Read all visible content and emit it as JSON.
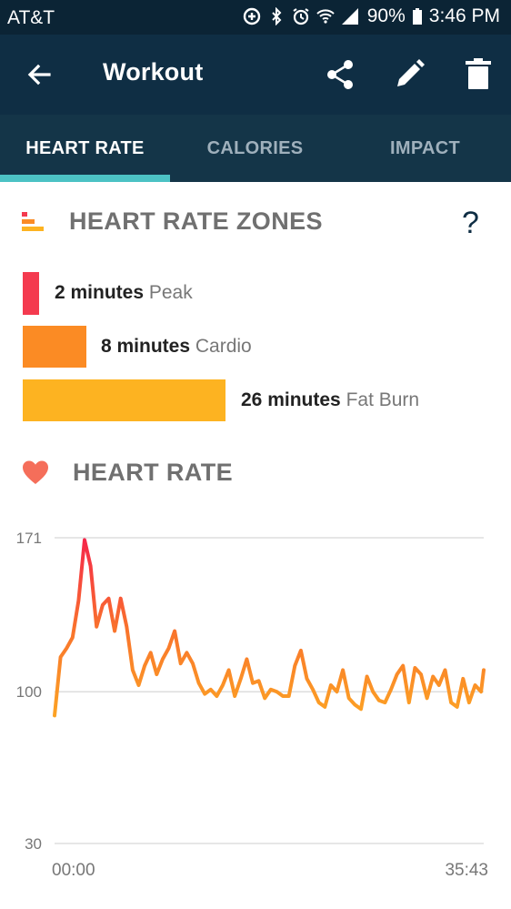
{
  "status_bar": {
    "carrier": "AT&T",
    "battery": "90%",
    "time": "3:46 PM"
  },
  "app_bar": {
    "title": "Workout"
  },
  "tabs": [
    {
      "label": "HEART RATE",
      "active": true
    },
    {
      "label": "CALORIES",
      "active": false
    },
    {
      "label": "IMPACT",
      "active": false
    }
  ],
  "zones": {
    "title": "HEART RATE ZONES",
    "help": "?",
    "items": [
      {
        "minutes": "2 minutes",
        "label": "Peak",
        "value": 2,
        "color": "#f43a4f"
      },
      {
        "minutes": "8 minutes",
        "label": "Cardio",
        "value": 8,
        "color": "#fb8b24"
      },
      {
        "minutes": "26 minutes",
        "label": "Fat Burn",
        "value": 26,
        "color": "#fdb321"
      }
    ]
  },
  "heart_rate": {
    "title": "HEART RATE"
  },
  "chart_data": {
    "type": "line",
    "ylim": [
      30,
      171
    ],
    "yticks": [
      "171",
      "100",
      "30"
    ],
    "xticks": [
      "00:00",
      "35:43"
    ],
    "x": [
      0,
      0.5,
      1,
      1.5,
      2,
      2.5,
      3,
      3.5,
      4,
      4.5,
      5,
      5.5,
      6,
      6.5,
      7,
      7.5,
      8,
      8.5,
      9,
      9.5,
      10,
      10.5,
      11,
      11.5,
      12,
      12.5,
      13,
      13.5,
      14,
      14.5,
      15,
      15.5,
      16,
      16.5,
      17,
      17.5,
      18,
      18.5,
      19,
      19.5,
      20,
      20.5,
      21,
      21.5,
      22,
      22.5,
      23,
      23.5,
      24,
      24.5,
      25,
      25.5,
      26,
      26.5,
      27,
      27.5,
      28,
      28.5,
      29,
      29.5,
      30,
      30.5,
      31,
      31.5,
      32,
      32.5,
      33,
      33.5,
      34,
      34.5,
      35,
      35.5,
      35.72
    ],
    "y": [
      89,
      116,
      120,
      125,
      142,
      170,
      158,
      130,
      140,
      143,
      128,
      143,
      130,
      110,
      103,
      112,
      118,
      108,
      115,
      120,
      128,
      113,
      118,
      113,
      104,
      99,
      101,
      98,
      103,
      110,
      98,
      106,
      115,
      104,
      105,
      97,
      101,
      100,
      98,
      98,
      112,
      119,
      106,
      101,
      95,
      93,
      103,
      100,
      110,
      97,
      94,
      92,
      107,
      100,
      96,
      95,
      101,
      108,
      112,
      95,
      111,
      108,
      97,
      107,
      103,
      110,
      95,
      93,
      106,
      95,
      103,
      100,
      110
    ]
  }
}
